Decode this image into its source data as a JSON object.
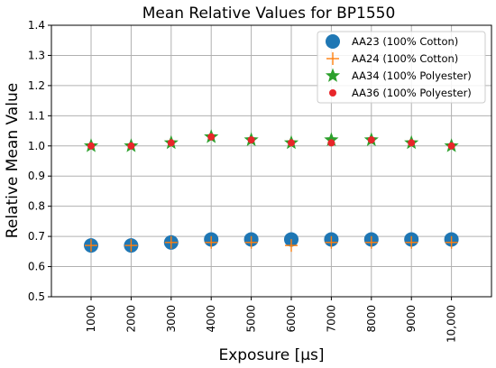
{
  "chart_data": {
    "type": "scatter",
    "title": "Mean Relative Values for BP1550",
    "xlabel": "Exposure [µs]",
    "ylabel": "Relative Mean Value",
    "categories": [
      "1000",
      "2000",
      "3000",
      "4000",
      "5000",
      "6000",
      "7000",
      "8000",
      "9000",
      "10,000"
    ],
    "ylim": [
      0.5,
      1.4
    ],
    "yticks": [
      "0.5",
      "0.6",
      "0.7",
      "0.8",
      "0.9",
      "1.0",
      "1.1",
      "1.2",
      "1.3",
      "1.4"
    ],
    "grid": true,
    "legend_position": "top-right",
    "series": [
      {
        "name": "AA23 (100% Cotton)",
        "marker": "circle",
        "color": "#1f77b4",
        "values": [
          0.67,
          0.67,
          0.68,
          0.69,
          0.69,
          0.69,
          0.69,
          0.69,
          0.69,
          0.69
        ]
      },
      {
        "name": "AA24 (100% Cotton)",
        "marker": "plus",
        "color": "#ff7f0e",
        "values": [
          0.67,
          0.67,
          0.68,
          0.68,
          0.68,
          0.67,
          0.68,
          0.68,
          0.68,
          0.68
        ]
      },
      {
        "name": "AA34 (100% Polyester)",
        "marker": "star",
        "color": "#2ca02c",
        "values": [
          1.0,
          1.0,
          1.01,
          1.03,
          1.02,
          1.01,
          1.02,
          1.02,
          1.01,
          1.0
        ]
      },
      {
        "name": "AA36 (100% Polyester)",
        "marker": "dot",
        "color": "#e8262a",
        "values": [
          1.0,
          1.0,
          1.01,
          1.03,
          1.02,
          1.01,
          1.01,
          1.02,
          1.01,
          1.0
        ]
      }
    ]
  }
}
